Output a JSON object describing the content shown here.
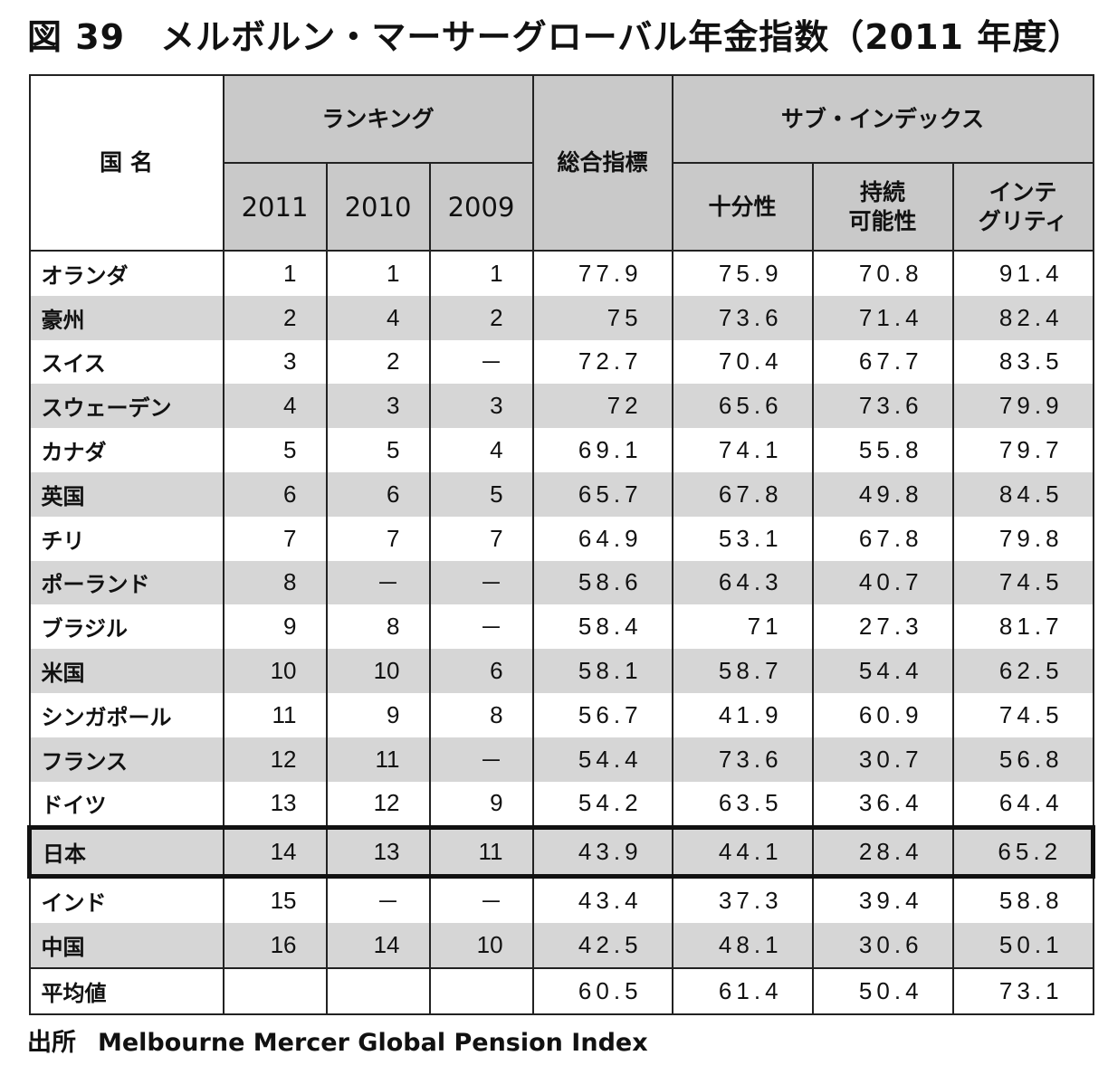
{
  "title": "図 39　メルボルン・マーサーグローバル年金指数（2011 年度）",
  "chart_data": {
    "type": "table",
    "headers": {
      "country": "国 名",
      "ranking": "ランキング",
      "years": [
        "2011",
        "2010",
        "2009"
      ],
      "total": "総合指標",
      "sub_index": "サブ・インデックス",
      "sub_columns": [
        [
          "十分性"
        ],
        [
          "持続",
          "可能性"
        ],
        [
          "インテ",
          "グリティ"
        ]
      ]
    },
    "rows": [
      {
        "country": "オランダ",
        "rank2011": "1",
        "rank2010": "1",
        "rank2009": "1",
        "total": "77.9",
        "adequacy": "75.9",
        "sustainability": "70.8",
        "integrity": "91.4"
      },
      {
        "country": "豪州",
        "rank2011": "2",
        "rank2010": "4",
        "rank2009": "2",
        "total": "75",
        "adequacy": "73.6",
        "sustainability": "71.4",
        "integrity": "82.4"
      },
      {
        "country": "スイス",
        "rank2011": "3",
        "rank2010": "2",
        "rank2009": "－",
        "total": "72.7",
        "adequacy": "70.4",
        "sustainability": "67.7",
        "integrity": "83.5"
      },
      {
        "country": "スウェーデン",
        "rank2011": "4",
        "rank2010": "3",
        "rank2009": "3",
        "total": "72",
        "adequacy": "65.6",
        "sustainability": "73.6",
        "integrity": "79.9"
      },
      {
        "country": "カナダ",
        "rank2011": "5",
        "rank2010": "5",
        "rank2009": "4",
        "total": "69.1",
        "adequacy": "74.1",
        "sustainability": "55.8",
        "integrity": "79.7"
      },
      {
        "country": "英国",
        "rank2011": "6",
        "rank2010": "6",
        "rank2009": "5",
        "total": "65.7",
        "adequacy": "67.8",
        "sustainability": "49.8",
        "integrity": "84.5"
      },
      {
        "country": "チリ",
        "rank2011": "7",
        "rank2010": "7",
        "rank2009": "7",
        "total": "64.9",
        "adequacy": "53.1",
        "sustainability": "67.8",
        "integrity": "79.8"
      },
      {
        "country": "ポーランド",
        "rank2011": "8",
        "rank2010": "－",
        "rank2009": "－",
        "total": "58.6",
        "adequacy": "64.3",
        "sustainability": "40.7",
        "integrity": "74.5"
      },
      {
        "country": "ブラジル",
        "rank2011": "9",
        "rank2010": "8",
        "rank2009": "－",
        "total": "58.4",
        "adequacy": "71",
        "sustainability": "27.3",
        "integrity": "81.7"
      },
      {
        "country": "米国",
        "rank2011": "10",
        "rank2010": "10",
        "rank2009": "6",
        "total": "58.1",
        "adequacy": "58.7",
        "sustainability": "54.4",
        "integrity": "62.5"
      },
      {
        "country": "シンガポール",
        "rank2011": "11",
        "rank2010": "9",
        "rank2009": "8",
        "total": "56.7",
        "adequacy": "41.9",
        "sustainability": "60.9",
        "integrity": "74.5"
      },
      {
        "country": "フランス",
        "rank2011": "12",
        "rank2010": "11",
        "rank2009": "－",
        "total": "54.4",
        "adequacy": "73.6",
        "sustainability": "30.7",
        "integrity": "56.8"
      },
      {
        "country": "ドイツ",
        "rank2011": "13",
        "rank2010": "12",
        "rank2009": "9",
        "total": "54.2",
        "adequacy": "63.5",
        "sustainability": "36.4",
        "integrity": "64.4"
      },
      {
        "country": "日本",
        "rank2011": "14",
        "rank2010": "13",
        "rank2009": "11",
        "total": "43.9",
        "adequacy": "44.1",
        "sustainability": "28.4",
        "integrity": "65.2",
        "highlighted": true
      },
      {
        "country": "インド",
        "rank2011": "15",
        "rank2010": "－",
        "rank2009": "－",
        "total": "43.4",
        "adequacy": "37.3",
        "sustainability": "39.4",
        "integrity": "58.8"
      },
      {
        "country": "中国",
        "rank2011": "16",
        "rank2010": "14",
        "rank2009": "10",
        "total": "42.5",
        "adequacy": "48.1",
        "sustainability": "30.6",
        "integrity": "50.1"
      },
      {
        "country": "平均値",
        "rank2011": "",
        "rank2010": "",
        "rank2009": "",
        "total": "60.5",
        "adequacy": "61.4",
        "sustainability": "50.4",
        "integrity": "73.1"
      }
    ]
  },
  "source": {
    "label": "出所",
    "text": "Melbourne Mercer Global Pension Index"
  },
  "colors": {
    "header_fill": "#c9c9c9",
    "stripe_fill": "#d6d6d6",
    "highlight_border": "#111111"
  }
}
